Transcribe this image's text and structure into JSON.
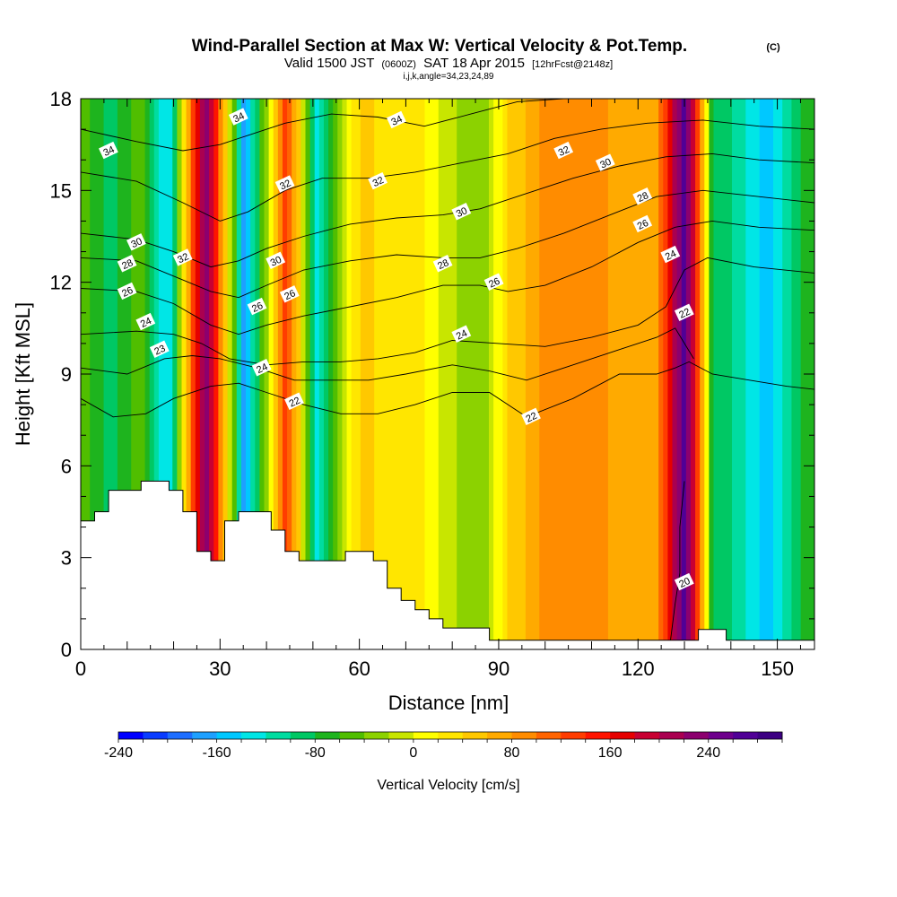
{
  "header": {
    "title": "Wind-Parallel Section at Max W: Vertical Velocity & Pot.Temp.",
    "title_mark": "(C)",
    "valid_prefix": "Valid 1500 JST",
    "valid_utc": "(0600Z)",
    "valid_date": "SAT 18 Apr 2015",
    "forecast": "[12hrFcst@2148z]",
    "indices": "i,j,k,angle=34,23,24,89"
  },
  "chart_data": {
    "type": "heatmap",
    "xlabel": "Distance [nm]",
    "ylabel": "Height [Kft MSL]",
    "xlim": [
      0,
      158
    ],
    "ylim": [
      0,
      18
    ],
    "x_ticks": [
      0,
      30,
      60,
      90,
      120,
      150
    ],
    "y_ticks": [
      0,
      3,
      6,
      9,
      12,
      15,
      18
    ],
    "colorbar": {
      "label": "Vertical Velocity [cm/s]",
      "min": -240,
      "max": 300,
      "step": 20,
      "tick_values": [
        -240,
        -160,
        -80,
        0,
        80,
        160,
        240
      ],
      "colors": [
        "#0000ff",
        "#0a3cff",
        "#1e6eff",
        "#1ea0ff",
        "#00c8ff",
        "#00e6e6",
        "#00dca0",
        "#00c864",
        "#1eb41e",
        "#50be00",
        "#8cd200",
        "#c8e600",
        "#ffff00",
        "#ffe600",
        "#ffc800",
        "#ffaa00",
        "#ff8c00",
        "#ff6400",
        "#ff3c00",
        "#ff1400",
        "#e60000",
        "#c80032",
        "#aa0050",
        "#8c006e",
        "#6e008c",
        "#500096",
        "#3c0082"
      ]
    },
    "w_columns": [
      {
        "x": 0,
        "w": -40
      },
      {
        "x": 6,
        "w": -90
      },
      {
        "x": 13,
        "w": -50
      },
      {
        "x": 19,
        "w": -150
      },
      {
        "x": 24,
        "w": 120
      },
      {
        "x": 27,
        "w": 240
      },
      {
        "x": 31,
        "w": 60
      },
      {
        "x": 35,
        "w": -170
      },
      {
        "x": 39,
        "w": -60
      },
      {
        "x": 44,
        "w": 140
      },
      {
        "x": 47,
        "w": 40
      },
      {
        "x": 51,
        "w": -140
      },
      {
        "x": 56,
        "w": -20
      },
      {
        "x": 61,
        "w": 60
      },
      {
        "x": 66,
        "w": 20
      },
      {
        "x": 72,
        "w": 30
      },
      {
        "x": 79,
        "w": -10
      },
      {
        "x": 86,
        "w": -40
      },
      {
        "x": 92,
        "w": 40
      },
      {
        "x": 99,
        "w": 80
      },
      {
        "x": 106,
        "w": 100
      },
      {
        "x": 112,
        "w": 90
      },
      {
        "x": 118,
        "w": 60
      },
      {
        "x": 124,
        "w": 80
      },
      {
        "x": 127,
        "w": 170
      },
      {
        "x": 130,
        "w": 280
      },
      {
        "x": 133,
        "w": 120
      },
      {
        "x": 136,
        "w": -80
      },
      {
        "x": 142,
        "w": -110
      },
      {
        "x": 148,
        "w": -150
      },
      {
        "x": 154,
        "w": -90
      },
      {
        "x": 158,
        "w": -60
      }
    ],
    "theta_contours": [
      {
        "value": 20,
        "points": [
          [
            127,
            0.3
          ],
          [
            128,
            1.5
          ],
          [
            129,
            2.5
          ],
          [
            129,
            4
          ],
          [
            130,
            5.5
          ]
        ]
      },
      {
        "value": 22,
        "points": [
          [
            0,
            8.2
          ],
          [
            7,
            7.6
          ],
          [
            14,
            7.7
          ],
          [
            20,
            8.2
          ],
          [
            28,
            8.6
          ],
          [
            34,
            8.7
          ],
          [
            40,
            8.4
          ],
          [
            48,
            8.0
          ],
          [
            56,
            7.7
          ],
          [
            64,
            7.7
          ],
          [
            72,
            8.0
          ],
          [
            80,
            8.4
          ],
          [
            88,
            8.4
          ],
          [
            96,
            7.6
          ],
          [
            106,
            8.2
          ],
          [
            116,
            9.0
          ],
          [
            124,
            9.0
          ],
          [
            128,
            9.2
          ],
          [
            131,
            9.4
          ],
          [
            136,
            9.0
          ],
          [
            144,
            8.8
          ],
          [
            152,
            8.6
          ],
          [
            158,
            8.5
          ]
        ]
      },
      {
        "value": 23,
        "points": [
          [
            0,
            9.2
          ],
          [
            10,
            9.0
          ],
          [
            18,
            9.5
          ],
          [
            24,
            9.6
          ],
          [
            30,
            9.5
          ],
          [
            38,
            9.2
          ],
          [
            46,
            8.8
          ],
          [
            54,
            8.8
          ],
          [
            62,
            8.8
          ],
          [
            70,
            9.0
          ],
          [
            80,
            9.3
          ],
          [
            88,
            9.1
          ],
          [
            96,
            8.8
          ],
          [
            106,
            9.3
          ],
          [
            116,
            9.8
          ],
          [
            124,
            10.2
          ],
          [
            128,
            10.5
          ],
          [
            132,
            9.5
          ]
        ]
      },
      {
        "value": 24,
        "points": [
          [
            0,
            10.3
          ],
          [
            12,
            10.4
          ],
          [
            20,
            10.3
          ],
          [
            26,
            10.0
          ],
          [
            32,
            9.5
          ],
          [
            40,
            9.3
          ],
          [
            48,
            9.4
          ],
          [
            56,
            9.4
          ],
          [
            64,
            9.5
          ],
          [
            72,
            9.7
          ],
          [
            80,
            10.1
          ],
          [
            90,
            10.0
          ],
          [
            100,
            9.9
          ],
          [
            110,
            10.2
          ],
          [
            120,
            10.6
          ],
          [
            126,
            11.2
          ],
          [
            130,
            12.4
          ],
          [
            135,
            12.8
          ],
          [
            145,
            12.5
          ],
          [
            158,
            12.3
          ]
        ]
      },
      {
        "value": 26,
        "points": [
          [
            0,
            11.8
          ],
          [
            12,
            11.7
          ],
          [
            20,
            11.3
          ],
          [
            28,
            10.6
          ],
          [
            34,
            10.3
          ],
          [
            40,
            10.6
          ],
          [
            48,
            10.9
          ],
          [
            58,
            11.2
          ],
          [
            68,
            11.5
          ],
          [
            78,
            11.9
          ],
          [
            86,
            11.9
          ],
          [
            92,
            11.7
          ],
          [
            100,
            11.9
          ],
          [
            110,
            12.5
          ],
          [
            120,
            13.3
          ],
          [
            128,
            13.8
          ],
          [
            136,
            14.0
          ],
          [
            146,
            13.8
          ],
          [
            158,
            13.7
          ]
        ]
      },
      {
        "value": 28,
        "points": [
          [
            0,
            12.8
          ],
          [
            12,
            12.7
          ],
          [
            20,
            12.2
          ],
          [
            28,
            11.7
          ],
          [
            34,
            11.5
          ],
          [
            40,
            11.9
          ],
          [
            48,
            12.4
          ],
          [
            58,
            12.7
          ],
          [
            68,
            12.9
          ],
          [
            78,
            12.8
          ],
          [
            86,
            12.8
          ],
          [
            94,
            13.1
          ],
          [
            104,
            13.6
          ],
          [
            114,
            14.2
          ],
          [
            124,
            14.8
          ],
          [
            134,
            15.0
          ],
          [
            146,
            14.8
          ],
          [
            158,
            14.6
          ]
        ]
      },
      {
        "value": 30,
        "points": [
          [
            0,
            13.6
          ],
          [
            12,
            13.4
          ],
          [
            20,
            13.0
          ],
          [
            28,
            12.5
          ],
          [
            34,
            12.7
          ],
          [
            40,
            13.1
          ],
          [
            48,
            13.5
          ],
          [
            58,
            13.9
          ],
          [
            68,
            14.1
          ],
          [
            78,
            14.2
          ],
          [
            86,
            14.4
          ],
          [
            96,
            14.9
          ],
          [
            106,
            15.4
          ],
          [
            116,
            15.8
          ],
          [
            126,
            16.1
          ],
          [
            136,
            16.2
          ],
          [
            146,
            16.0
          ],
          [
            158,
            15.9
          ]
        ]
      },
      {
        "value": 32,
        "points": [
          [
            0,
            15.6
          ],
          [
            12,
            15.3
          ],
          [
            22,
            14.6
          ],
          [
            30,
            14.0
          ],
          [
            36,
            14.3
          ],
          [
            44,
            15.0
          ],
          [
            52,
            15.4
          ],
          [
            62,
            15.4
          ],
          [
            72,
            15.6
          ],
          [
            82,
            15.9
          ],
          [
            92,
            16.2
          ],
          [
            102,
            16.7
          ],
          [
            112,
            17.0
          ],
          [
            122,
            17.2
          ],
          [
            134,
            17.3
          ],
          [
            146,
            17.1
          ],
          [
            158,
            17.0
          ]
        ]
      },
      {
        "value": 34,
        "points": [
          [
            0,
            17.0
          ],
          [
            12,
            16.6
          ],
          [
            22,
            16.3
          ],
          [
            30,
            16.5
          ],
          [
            36,
            16.8
          ],
          [
            44,
            17.2
          ],
          [
            54,
            17.5
          ],
          [
            64,
            17.4
          ],
          [
            74,
            17.1
          ],
          [
            84,
            17.5
          ],
          [
            94,
            17.9
          ],
          [
            104,
            18.0
          ]
        ]
      }
    ],
    "contour_labels": [
      {
        "value": 34,
        "x": 6,
        "y": 16.3
      },
      {
        "value": 34,
        "x": 34,
        "y": 17.4
      },
      {
        "value": 34,
        "x": 68,
        "y": 17.3
      },
      {
        "value": 32,
        "x": 22,
        "y": 12.8
      },
      {
        "value": 32,
        "x": 44,
        "y": 15.2
      },
      {
        "value": 32,
        "x": 64,
        "y": 15.3
      },
      {
        "value": 32,
        "x": 104,
        "y": 16.3
      },
      {
        "value": 30,
        "x": 12,
        "y": 13.3
      },
      {
        "value": 30,
        "x": 42,
        "y": 12.7
      },
      {
        "value": 30,
        "x": 82,
        "y": 14.3
      },
      {
        "value": 30,
        "x": 113,
        "y": 15.9
      },
      {
        "value": 28,
        "x": 10,
        "y": 12.6
      },
      {
        "value": 28,
        "x": 78,
        "y": 12.6
      },
      {
        "value": 28,
        "x": 121,
        "y": 14.8
      },
      {
        "value": 26,
        "x": 10,
        "y": 11.7
      },
      {
        "value": 26,
        "x": 38,
        "y": 11.2
      },
      {
        "value": 26,
        "x": 45,
        "y": 11.6
      },
      {
        "value": 26,
        "x": 89,
        "y": 12.0
      },
      {
        "value": 26,
        "x": 121,
        "y": 13.9
      },
      {
        "value": 24,
        "x": 14,
        "y": 10.7
      },
      {
        "value": 24,
        "x": 39,
        "y": 9.2
      },
      {
        "value": 24,
        "x": 82,
        "y": 10.3
      },
      {
        "value": 24,
        "x": 127,
        "y": 12.9
      },
      {
        "value": 23,
        "x": 17,
        "y": 9.8
      },
      {
        "value": 22,
        "x": 46,
        "y": 8.1
      },
      {
        "value": 22,
        "x": 97,
        "y": 7.6
      },
      {
        "value": 22,
        "x": 130,
        "y": 11.0
      },
      {
        "value": 20,
        "x": 130,
        "y": 2.2
      }
    ],
    "terrain": [
      [
        0,
        4.2
      ],
      [
        3,
        4.2
      ],
      [
        3,
        4.5
      ],
      [
        6,
        4.5
      ],
      [
        6,
        5.2
      ],
      [
        13,
        5.2
      ],
      [
        13,
        5.5
      ],
      [
        19,
        5.5
      ],
      [
        19,
        5.2
      ],
      [
        22,
        5.2
      ],
      [
        22,
        4.5
      ],
      [
        25,
        4.5
      ],
      [
        25,
        3.2
      ],
      [
        28,
        3.2
      ],
      [
        28,
        2.9
      ],
      [
        31,
        2.9
      ],
      [
        31,
        4.2
      ],
      [
        34,
        4.2
      ],
      [
        34,
        4.5
      ],
      [
        41,
        4.5
      ],
      [
        41,
        3.9
      ],
      [
        44,
        3.9
      ],
      [
        44,
        3.2
      ],
      [
        47,
        3.2
      ],
      [
        47,
        2.9
      ],
      [
        57,
        2.9
      ],
      [
        57,
        3.2
      ],
      [
        63,
        3.2
      ],
      [
        63,
        2.9
      ],
      [
        66,
        2.9
      ],
      [
        66,
        2.0
      ],
      [
        69,
        2.0
      ],
      [
        69,
        1.6
      ],
      [
        72,
        1.6
      ],
      [
        72,
        1.3
      ],
      [
        75,
        1.3
      ],
      [
        75,
        1.0
      ],
      [
        78,
        1.0
      ],
      [
        78,
        0.7
      ],
      [
        81,
        0.7
      ],
      [
        81,
        0.7
      ],
      [
        88,
        0.7
      ],
      [
        88,
        0.3
      ],
      [
        133,
        0.3
      ],
      [
        133,
        0.65
      ],
      [
        139,
        0.65
      ],
      [
        139,
        0.3
      ],
      [
        158,
        0.3
      ]
    ]
  }
}
